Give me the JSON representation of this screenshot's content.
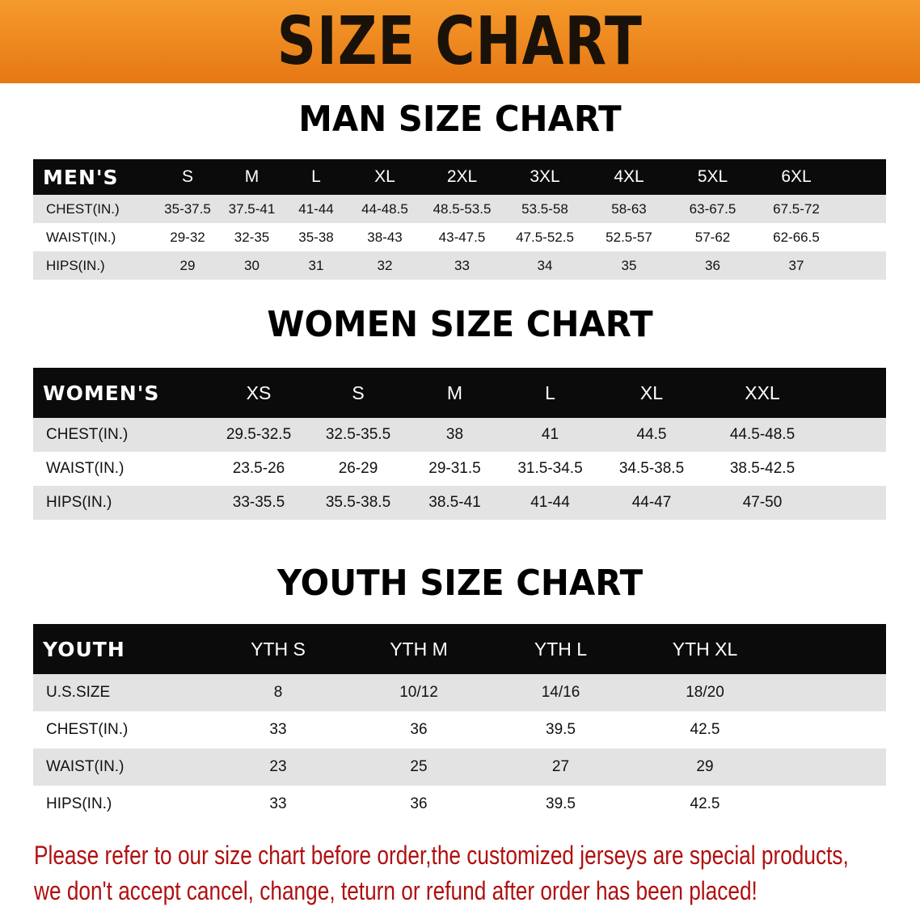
{
  "banner_title": "SIZE CHART",
  "colors": {
    "banner": "#ee8a20",
    "header_row": "#0b0b0b",
    "shaded_row": "#e3e3e4",
    "notice_text": "#b01010"
  },
  "men": {
    "title": "MAN SIZE CHART",
    "header": "MEN'S",
    "sizes": [
      "S",
      "M",
      "L",
      "XL",
      "2XL",
      "3XL",
      "4XL",
      "5XL",
      "6XL"
    ],
    "rows": [
      {
        "label": "CHEST(IN.)",
        "values": [
          "35-37.5",
          "37.5-41",
          "41-44",
          "44-48.5",
          "48.5-53.5",
          "53.5-58",
          "58-63",
          "63-67.5",
          "67.5-72"
        ]
      },
      {
        "label": "WAIST(IN.)",
        "values": [
          "29-32",
          "32-35",
          "35-38",
          "38-43",
          "43-47.5",
          "47.5-52.5",
          "52.5-57",
          "57-62",
          "62-66.5"
        ]
      },
      {
        "label": "HIPS(IN.)",
        "values": [
          "29",
          "30",
          "31",
          "32",
          "33",
          "34",
          "35",
          "36",
          "37"
        ]
      }
    ]
  },
  "women": {
    "title": "WOMEN SIZE CHART",
    "header": "WOMEN'S",
    "sizes": [
      "XS",
      "S",
      "M",
      "L",
      "XL",
      "XXL"
    ],
    "rows": [
      {
        "label": "CHEST(IN.)",
        "values": [
          "29.5-32.5",
          "32.5-35.5",
          "38",
          "41",
          "44.5",
          "44.5-48.5"
        ]
      },
      {
        "label": "WAIST(IN.)",
        "values": [
          "23.5-26",
          "26-29",
          "29-31.5",
          "31.5-34.5",
          "34.5-38.5",
          "38.5-42.5"
        ]
      },
      {
        "label": "HIPS(IN.)",
        "values": [
          "33-35.5",
          "35.5-38.5",
          "38.5-41",
          "41-44",
          "44-47",
          "47-50"
        ]
      }
    ]
  },
  "youth": {
    "title": "YOUTH SIZE CHART",
    "header": "YOUTH",
    "sizes": [
      "YTH S",
      "YTH M",
      "YTH L",
      "YTH XL"
    ],
    "rows": [
      {
        "label": "U.S.SIZE",
        "values": [
          "8",
          "10/12",
          "14/16",
          "18/20"
        ]
      },
      {
        "label": "CHEST(IN.)",
        "values": [
          "33",
          "36",
          "39.5",
          "42.5"
        ]
      },
      {
        "label": "WAIST(IN.)",
        "values": [
          "23",
          "25",
          "27",
          "29"
        ]
      },
      {
        "label": "HIPS(IN.)",
        "values": [
          "33",
          "36",
          "39.5",
          "42.5"
        ]
      }
    ]
  },
  "notice": {
    "line1": "Please refer to our size chart before order,the customized jerseys are special products,",
    "line2": "we don't accept cancel, change, teturn or refund after order has been placed!"
  }
}
